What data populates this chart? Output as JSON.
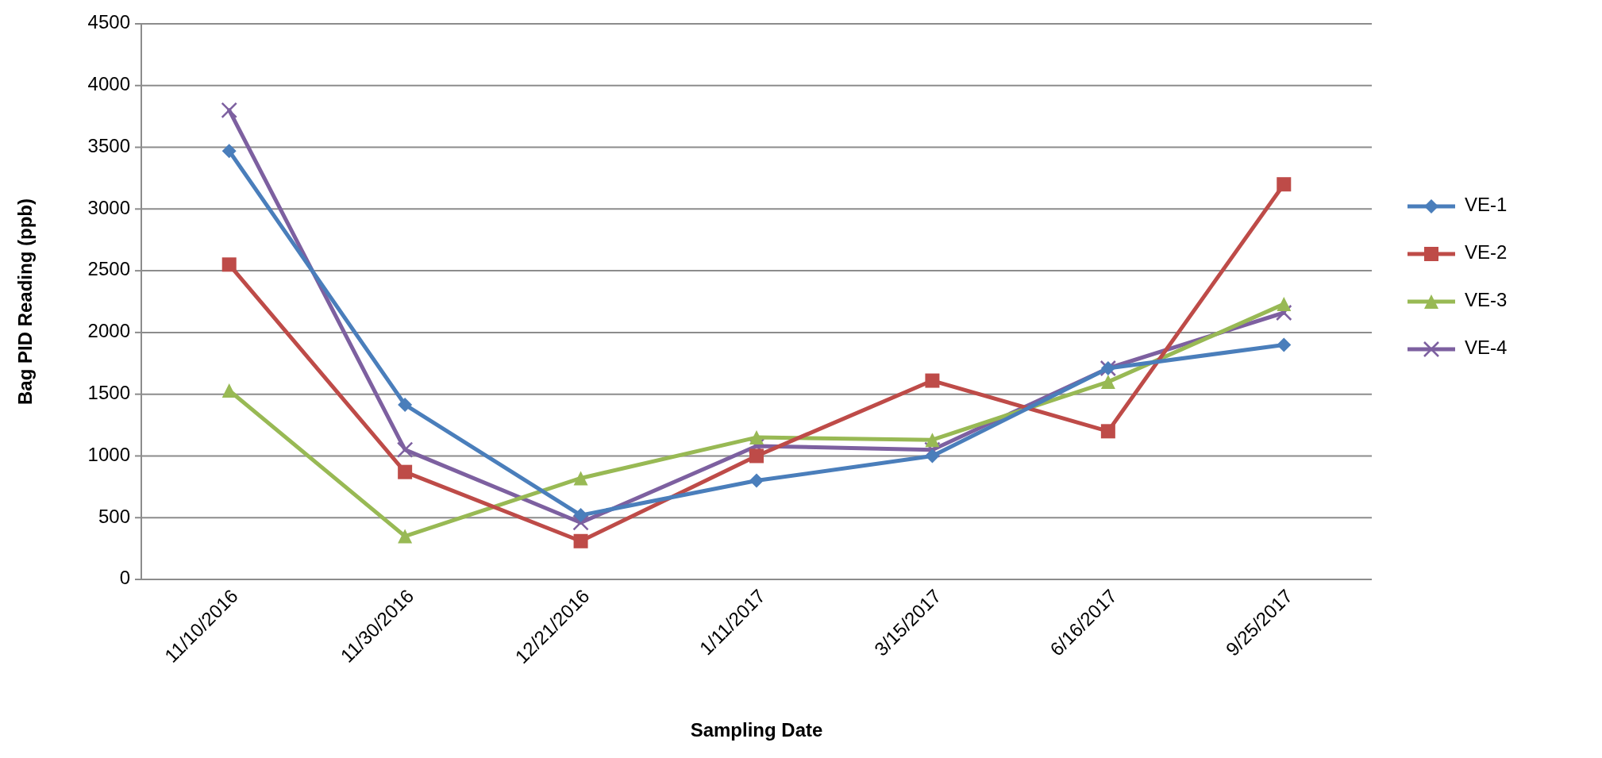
{
  "chart_data": {
    "type": "line",
    "xlabel": "Sampling Date",
    "ylabel": "Bag PID Reading (ppb)",
    "categories": [
      "11/10/2016",
      "11/30/2016",
      "12/21/2016",
      "1/11/2017",
      "3/15/2017",
      "6/16/2017",
      "9/25/2017"
    ],
    "series": [
      {
        "name": "VE-1",
        "color": "#4a7ebb",
        "marker": "diamond",
        "values": [
          3470,
          1415,
          520,
          800,
          1000,
          1710,
          1900
        ]
      },
      {
        "name": "VE-2",
        "color": "#be4b48",
        "marker": "square",
        "values": [
          2550,
          870,
          310,
          1000,
          1610,
          1200,
          3200
        ]
      },
      {
        "name": "VE-3",
        "color": "#98b954",
        "marker": "triangle",
        "values": [
          1530,
          350,
          820,
          1150,
          1130,
          1600,
          2230
        ]
      },
      {
        "name": "VE-4",
        "color": "#7d60a0",
        "marker": "cross",
        "values": [
          3800,
          1050,
          460,
          1080,
          1050,
          1710,
          2160
        ]
      }
    ],
    "ylim": [
      0,
      4500
    ],
    "yticks": [
      0,
      500,
      1000,
      1500,
      2000,
      2500,
      3000,
      3500,
      4000,
      4500
    ],
    "grid": "y",
    "legend": "right",
    "line_style": "solid"
  }
}
